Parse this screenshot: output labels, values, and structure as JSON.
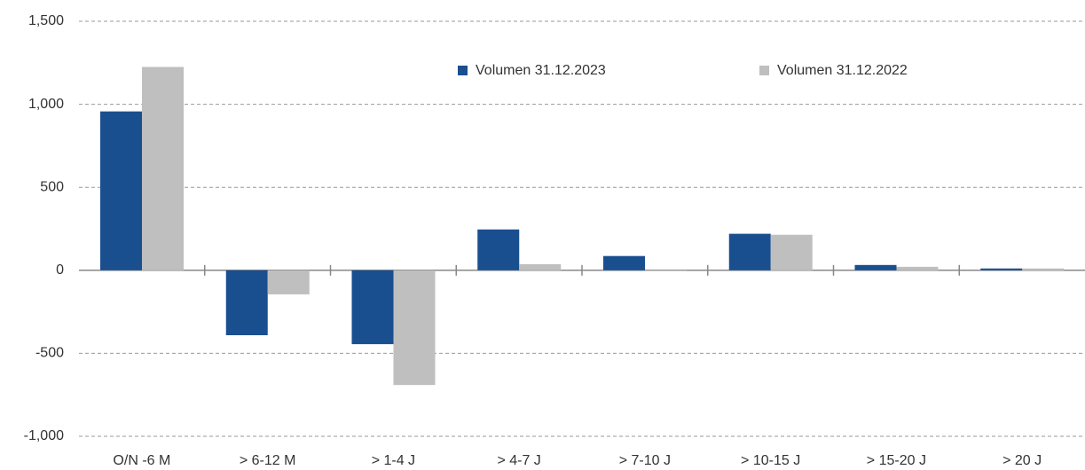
{
  "chart_data": {
    "type": "bar",
    "categories": [
      "O/N -6 M",
      "> 6-12 M",
      "> 1-4 J",
      "> 4-7 J",
      "> 7-10 J",
      "> 10-15 J",
      "> 15-20 J",
      "> 20 J"
    ],
    "series": [
      {
        "name": "Volumen 31.12.2023",
        "color": "#1a4f8f",
        "values": [
          957,
          -391,
          -445,
          246,
          86,
          220,
          32,
          11
        ]
      },
      {
        "name": "Volumen 31.12.2022",
        "color": "#bfbfbf",
        "values": [
          1225,
          -145,
          -691,
          37,
          -5,
          214,
          21,
          11
        ]
      }
    ],
    "ylim": [
      -1000,
      1500
    ],
    "yticks": [
      {
        "value": -1000,
        "label": "-1,000"
      },
      {
        "value": -500,
        "label": "-500"
      },
      0,
      500,
      {
        "value": 1000,
        "label": "1,000"
      },
      {
        "value": 1500,
        "label": "1,500"
      }
    ],
    "grid": true,
    "legend": "top"
  }
}
